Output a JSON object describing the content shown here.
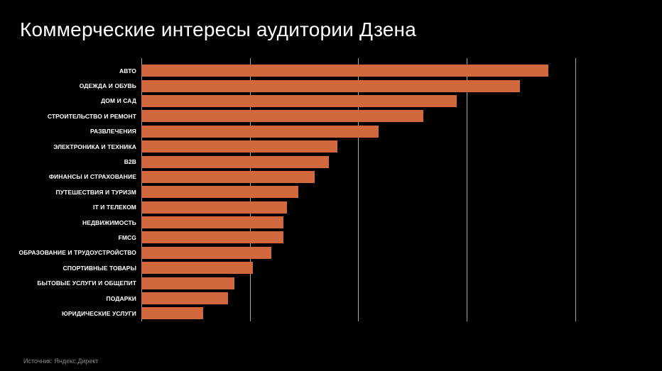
{
  "slide": {
    "title": "Коммерческие интересы аудитории Дзена",
    "source": "Источник: Яндекс.Директ"
  },
  "colors": {
    "background": "#000000",
    "title_text": "#ffffff",
    "category_label_text": "#ffffff",
    "bar_fill": "#d2693e",
    "gridline": "#a6a6a6",
    "source_text": "#858585"
  },
  "chart_data": {
    "type": "bar",
    "orientation": "horizontal",
    "title": "Коммерческие интересы аудитории Дзена",
    "categories": [
      "АВТО",
      "ОДЕЖДА И ОБУВЬ",
      "ДОМ И САД",
      "СТРОИТЕЛЬСТВО И РЕМОНТ",
      "РАЗВЛЕЧЕНИЯ",
      "ЭЛЕКТРОНИКА И ТЕХНИКА",
      "B2B",
      "ФИНАНСЫ И СТРАХОВАНИЕ",
      "ПУТЕШЕСТВИЯ И ТУРИЗМ",
      "IT И ТЕЛЕКОМ",
      "НЕДВИЖИМОСТЬ",
      "FMCG",
      "ОБРАЗОВАНИЕ И ТРУДОУСТРОЙСТВО",
      "СПОРТИВНЫЕ ТОВАРЫ",
      "БЫТОВЫЕ УСЛУГИ И ОБЩЕПИТ",
      "ПОДАРКИ",
      "ЮРИДИЧЕСКИЕ УСЛУГИ"
    ],
    "values": [
      37.5,
      34.9,
      29.1,
      26.0,
      21.9,
      18.1,
      17.3,
      16.0,
      14.5,
      13.4,
      13.1,
      13.1,
      12.0,
      10.3,
      8.6,
      8.0,
      5.7
    ],
    "xlim": [
      0,
      48
    ],
    "gridlines": [
      0,
      10,
      20,
      30,
      40
    ],
    "axis_tick_labels_visible": false,
    "value_labels_visible": false,
    "legend": "none",
    "xlabel": "",
    "ylabel": ""
  }
}
